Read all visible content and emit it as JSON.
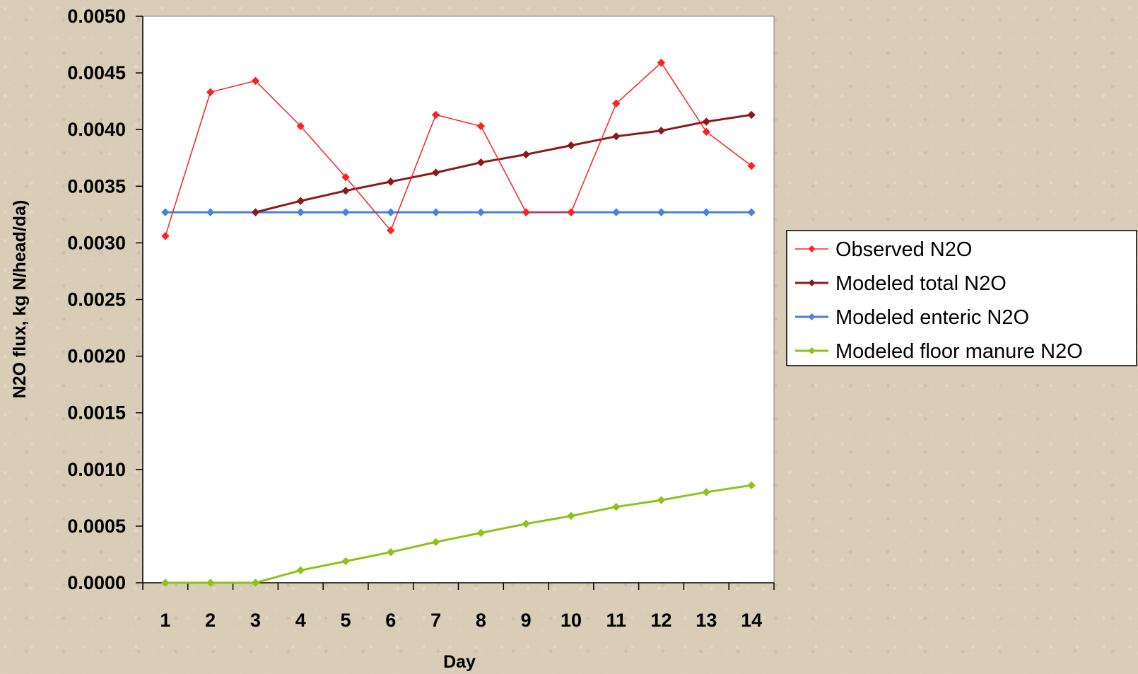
{
  "chart_data": {
    "type": "line",
    "title": "",
    "xlabel": "Day",
    "ylabel": "N2O flux, kg N/head/da)",
    "categories": [
      "1",
      "2",
      "3",
      "4",
      "5",
      "6",
      "7",
      "8",
      "9",
      "10",
      "11",
      "12",
      "13",
      "14"
    ],
    "ylim": [
      0,
      0.005
    ],
    "yticks": [
      "0.0000",
      "0.0005",
      "0.0010",
      "0.0015",
      "0.0020",
      "0.0025",
      "0.0030",
      "0.0035",
      "0.0040",
      "0.0045",
      "0.0050"
    ],
    "grid": false,
    "legend_position": "right",
    "series": [
      {
        "name": "Observed N2O",
        "color": "#ff2020",
        "marker": "diamond",
        "values": [
          0.00306,
          0.00433,
          0.00443,
          0.00403,
          0.00358,
          0.00311,
          0.00413,
          0.00403,
          0.00327,
          0.00327,
          0.00423,
          0.00459,
          0.00398,
          0.00368
        ]
      },
      {
        "name": "Modeled total N2O",
        "color": "#8b1a1a",
        "marker": "diamond",
        "values": [
          null,
          null,
          0.00327,
          0.00337,
          0.00346,
          0.00354,
          0.00362,
          0.00371,
          0.00378,
          0.00386,
          0.00394,
          0.00399,
          0.00407,
          0.00413
        ]
      },
      {
        "name": "Modeled enteric N2O",
        "color": "#4a7ee8",
        "marker": "diamond",
        "values": [
          0.00327,
          0.00327,
          0.00327,
          0.00327,
          0.00327,
          0.00327,
          0.00327,
          0.00327,
          0.00327,
          0.00327,
          0.00327,
          0.00327,
          0.00327,
          0.00327
        ]
      },
      {
        "name": "Modeled floor manure N2O",
        "color": "#8ec21a",
        "marker": "diamond",
        "values": [
          0.0,
          0.0,
          0.0,
          0.00011,
          0.00019,
          0.00027,
          0.00036,
          0.00044,
          0.00052,
          0.00059,
          0.00067,
          0.00073,
          0.0008,
          0.00086
        ]
      }
    ]
  }
}
